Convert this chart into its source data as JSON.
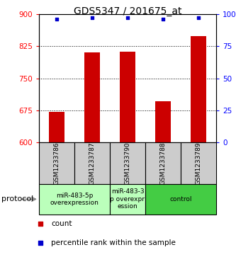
{
  "title": "GDS5347 / 201675_at",
  "samples": [
    "GSM1233786",
    "GSM1233787",
    "GSM1233790",
    "GSM1233788",
    "GSM1233789"
  ],
  "counts": [
    672,
    810,
    812,
    697,
    848
  ],
  "percentiles": [
    96,
    97,
    97,
    96,
    97
  ],
  "ylim_left": [
    600,
    900
  ],
  "yticks_left": [
    600,
    675,
    750,
    825,
    900
  ],
  "ylim_right": [
    0,
    100
  ],
  "yticks_right": [
    0,
    25,
    50,
    75,
    100
  ],
  "bar_color": "#cc0000",
  "dot_color": "#0000cc",
  "bar_bottom": 600,
  "protocols": [
    {
      "label": "miR-483-5p\noverexpression",
      "span": [
        0,
        2
      ],
      "color": "#bbffbb"
    },
    {
      "label": "miR-483-3\np overexpr\nession",
      "span": [
        2,
        3
      ],
      "color": "#bbffbb"
    },
    {
      "label": "control",
      "span": [
        3,
        5
      ],
      "color": "#44cc44"
    }
  ],
  "legend_items": [
    {
      "color": "#cc0000",
      "label": "count"
    },
    {
      "color": "#0000cc",
      "label": "percentile rank within the sample"
    }
  ],
  "protocol_label": "protocol",
  "bg_color": "#ffffff",
  "plot_bg_color": "#ffffff",
  "sample_box_color": "#cccccc",
  "title_fontsize": 10,
  "tick_fontsize": 7.5,
  "sample_fontsize": 6.5,
  "proto_fontsize": 6.5,
  "legend_fontsize": 7.5
}
